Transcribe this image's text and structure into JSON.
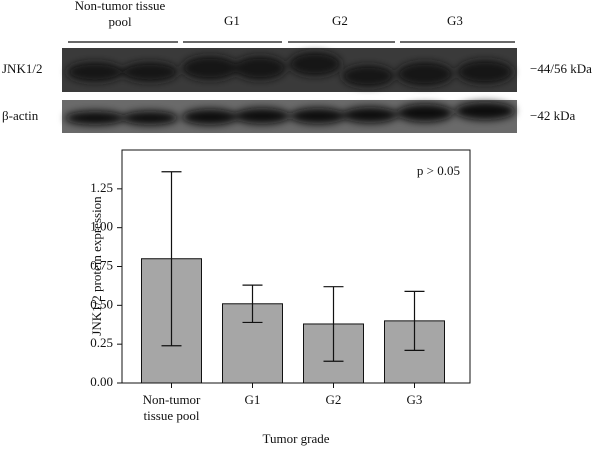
{
  "blot": {
    "lanes": [
      "Non-tumor tissue pool",
      "G1",
      "G2",
      "G3"
    ],
    "rows": [
      {
        "label": "JNK1/2",
        "marker": "−44/56 kDa"
      },
      {
        "label": "β-actin",
        "marker": "−42 kDa"
      }
    ]
  },
  "chart_data": {
    "type": "bar",
    "categories": [
      "Non-tumor tissue pool",
      "G1",
      "G2",
      "G3"
    ],
    "values": [
      0.8,
      0.51,
      0.38,
      0.4
    ],
    "errors": [
      0.56,
      0.12,
      0.24,
      0.19
    ],
    "color": "#a6a6a6",
    "ylabel": "JNK1/2 protein expression",
    "xlabel": "Tumor grade",
    "annotation": "p > 0.05",
    "ylim": [
      0,
      1.5
    ],
    "yticks": [
      {
        "value": 0,
        "label": "0.00"
      },
      {
        "value": 0.25,
        "label": "0.25"
      },
      {
        "value": 0.5,
        "label": "0.50"
      },
      {
        "value": 0.75,
        "label": "0.75"
      },
      {
        "value": 1,
        "label": "1.00"
      },
      {
        "value": 1.25,
        "label": "1.25"
      }
    ]
  }
}
